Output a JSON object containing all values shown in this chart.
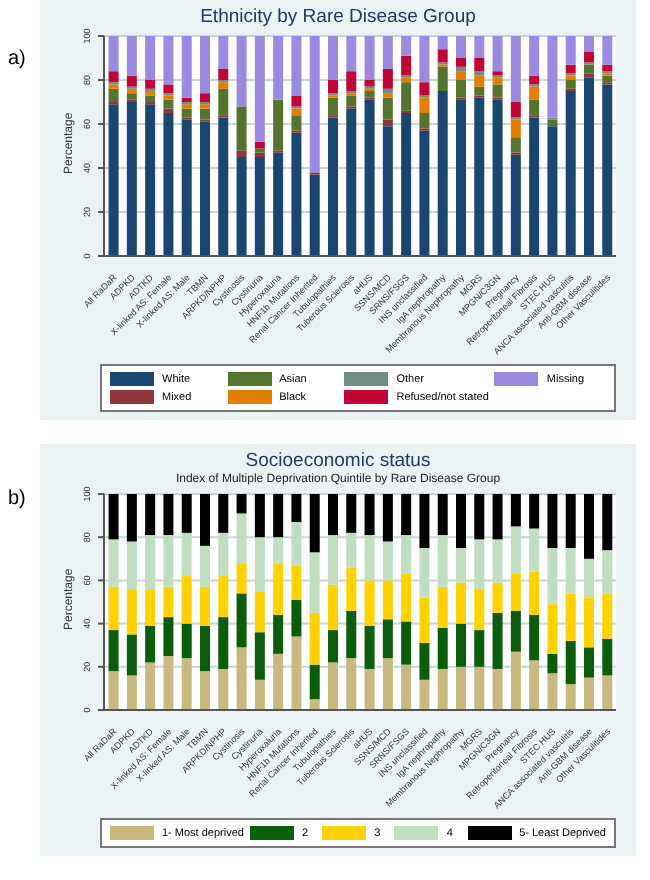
{
  "chart_data": [
    {
      "type": "bar",
      "stacked": true,
      "title": "Ethnicity by Rare Disease Group",
      "ylabel": "Percentage",
      "annotations": [
        "a)"
      ],
      "categories": [
        "All RaDaR",
        "ADPKD",
        "ADTKD",
        "X-linked AS: Female",
        "X-linked AS: Male",
        "TBMN",
        "ARPKD/NPHP",
        "Cystinosis",
        "Cystinuria",
        "Hyperoxaluria",
        "HNF1b Mutations",
        "Renal Cancer Inherited",
        "Tubulopathies",
        "Tuberous Sclerosis",
        "aHUS",
        "SSNS/MCD",
        "SRNS/FSGS",
        "INS unclassified",
        "IgA nephropathy",
        "Membranous Nephropathy",
        "MGRS",
        "MPGN/C3GN",
        "Pregnancy",
        "Retroperitoneal Fibrosis",
        "STEC HUS",
        "ANCA associated vasculitis",
        "Anti-GBM disease",
        "Other Vasculitides"
      ],
      "series": [
        {
          "name": "White",
          "color": "#1a476f",
          "values": [
            69,
            70,
            69,
            65,
            62,
            61,
            63,
            45,
            45,
            47,
            56,
            37,
            63,
            67,
            71,
            59,
            65,
            57,
            75,
            71,
            72,
            71,
            46,
            63,
            59,
            75,
            81,
            78
          ]
        },
        {
          "name": "Mixed",
          "color": "#90353b",
          "values": [
            1,
            1,
            1,
            2,
            1,
            1,
            1,
            3,
            2,
            1,
            1,
            1,
            1,
            1,
            1,
            3,
            1,
            1,
            0,
            1,
            1,
            1,
            1,
            1,
            0,
            1,
            2,
            1
          ]
        },
        {
          "name": "Asian",
          "color": "#55752f",
          "values": [
            6,
            3,
            3,
            4,
            4,
            5,
            12,
            20,
            2,
            23,
            7,
            0,
            8,
            5,
            3,
            10,
            13,
            7,
            11,
            8,
            4,
            6,
            7,
            7,
            3,
            4,
            4,
            3
          ]
        },
        {
          "name": "Black",
          "color": "#e37e00",
          "values": [
            2,
            2,
            2,
            2,
            2,
            2,
            3,
            0,
            0,
            0,
            3,
            0,
            1,
            1,
            1,
            2,
            2,
            7,
            1,
            4,
            5,
            3,
            8,
            6,
            0,
            2,
            0,
            1
          ]
        },
        {
          "name": "Other",
          "color": "#6e8e84",
          "values": [
            1,
            1,
            1,
            1,
            1,
            1,
            1,
            0,
            0,
            0,
            1,
            0,
            1,
            1,
            1,
            2,
            1,
            1,
            1,
            2,
            2,
            1,
            1,
            1,
            1,
            1,
            1,
            1
          ]
        },
        {
          "name": "Refused/not stated",
          "color": "#c10534",
          "values": [
            5,
            5,
            4,
            4,
            2,
            4,
            5,
            0,
            3,
            0,
            5,
            0,
            6,
            9,
            3,
            9,
            9,
            6,
            6,
            4,
            6,
            2,
            7,
            4,
            0,
            4,
            5,
            3
          ]
        },
        {
          "name": "Missing",
          "color": "#9c8ae0",
          "values": [
            16,
            18,
            20,
            22,
            28,
            26,
            15,
            32,
            48,
            29,
            27,
            62,
            20,
            16,
            20,
            15,
            9,
            21,
            6,
            10,
            10,
            16,
            30,
            18,
            37,
            13,
            7,
            13
          ]
        }
      ],
      "ylim": [
        0,
        100
      ],
      "yticks": [
        0,
        20,
        40,
        60,
        80,
        100
      ],
      "grid": "y",
      "legend": "bottom"
    },
    {
      "type": "bar",
      "stacked": true,
      "title": "Socioeconomic status",
      "subtitle": "Index of Multiple Deprivation Quintile by Rare Disease Group",
      "ylabel": "Percentage",
      "annotations": [
        "b)"
      ],
      "categories": [
        "All RaDaR",
        "ADPKD",
        "ADTKD",
        "X-linked AS: Female",
        "X-linked AS: Male",
        "TBMN",
        "ARPKD/NPHP",
        "Cystinosis",
        "Cystinuria",
        "Hyperoxaluria",
        "HNF1b Mutations",
        "Renal Cancer Inherited",
        "Tubulopathies",
        "Tuberous Sclerosis",
        "aHUS",
        "SSNS/MCD",
        "SRNS/FSGS",
        "INS unclassified",
        "IgA nephropathy",
        "Membranous Nephropathy",
        "MGRS",
        "MPGN/C3GN",
        "Pregnancy",
        "Retroperitoneal Fibrosis",
        "STEC HUS",
        "ANCA associated vasculitis",
        "Anti-GBM disease",
        "Other Vasculitides"
      ],
      "series": [
        {
          "name": "1- Most deprived",
          "color": "#c8b97e",
          "values": [
            18,
            16,
            22,
            25,
            24,
            18,
            19,
            29,
            14,
            26,
            34,
            5,
            22,
            24,
            19,
            24,
            21,
            14,
            19,
            20,
            20,
            19,
            27,
            23,
            17,
            12,
            15,
            16
          ]
        },
        {
          "name": "2",
          "color": "#0b5d0b",
          "values": [
            19,
            19,
            17,
            18,
            16,
            21,
            24,
            25,
            22,
            18,
            17,
            16,
            15,
            22,
            20,
            18,
            20,
            17,
            19,
            20,
            17,
            26,
            19,
            21,
            9,
            20,
            14,
            17
          ]
        },
        {
          "name": "3",
          "color": "#ffd200",
          "values": [
            20,
            21,
            17,
            14,
            22,
            18,
            19,
            14,
            19,
            24,
            16,
            24,
            21,
            20,
            21,
            18,
            22,
            21,
            19,
            19,
            19,
            14,
            17,
            20,
            23,
            22,
            23,
            21
          ]
        },
        {
          "name": "4",
          "color": "#c2dec2",
          "values": [
            22,
            22,
            25,
            24,
            20,
            19,
            20,
            23,
            25,
            12,
            20,
            28,
            23,
            16,
            21,
            18,
            18,
            23,
            24,
            16,
            23,
            20,
            22,
            20,
            26,
            21,
            18,
            20
          ]
        },
        {
          "name": "5- Least Deprived",
          "color": "#000000",
          "values": [
            21,
            22,
            19,
            19,
            18,
            24,
            18,
            9,
            20,
            20,
            13,
            27,
            19,
            18,
            19,
            22,
            19,
            25,
            19,
            25,
            21,
            21,
            15,
            16,
            25,
            25,
            30,
            26
          ]
        }
      ],
      "ylim": [
        0,
        100
      ],
      "yticks": [
        0,
        20,
        40,
        60,
        80,
        100
      ],
      "grid": "y",
      "legend": "bottom"
    }
  ]
}
